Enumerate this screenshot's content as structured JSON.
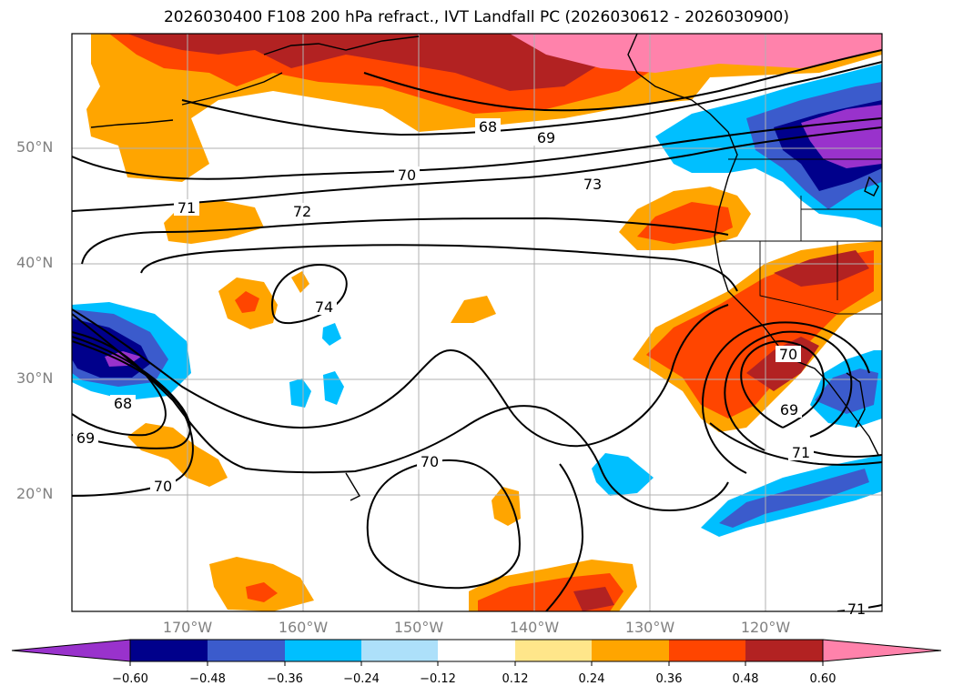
{
  "title": "2026030400 F108 200 hPa refract., IVT Landfall PC (2026030612 - 2026030900)",
  "lat_labels": [
    "50°N",
    "40°N",
    "30°N",
    "20°N"
  ],
  "lon_labels": [
    "170°W",
    "160°W",
    "150°W",
    "140°W",
    "130°W",
    "120°W"
  ],
  "contour_labels": {
    "c68_top": "68",
    "c69_top": "69",
    "c70_top": "70",
    "c71_left": "71",
    "c72": "72",
    "c73": "73",
    "c74": "74",
    "c68_left": "68",
    "c69_left": "69",
    "c70_left": "70",
    "c70_mid": "70",
    "c70_east": "70",
    "c69_east": "69",
    "c71_east": "71",
    "c71_corner": "71"
  },
  "colorbar": {
    "ticks": [
      "−0.60",
      "−0.48",
      "−0.36",
      "−0.24",
      "−0.12",
      "0.12",
      "0.24",
      "0.36",
      "0.48",
      "0.60"
    ],
    "colors": [
      "#9932cc",
      "#00008b",
      "#3b5bcc",
      "#00bfff",
      "#ade0fa",
      "#ffffff",
      "#ffe68a",
      "#ffa500",
      "#ff4500",
      "#b22222",
      "#ff82ab"
    ]
  }
}
